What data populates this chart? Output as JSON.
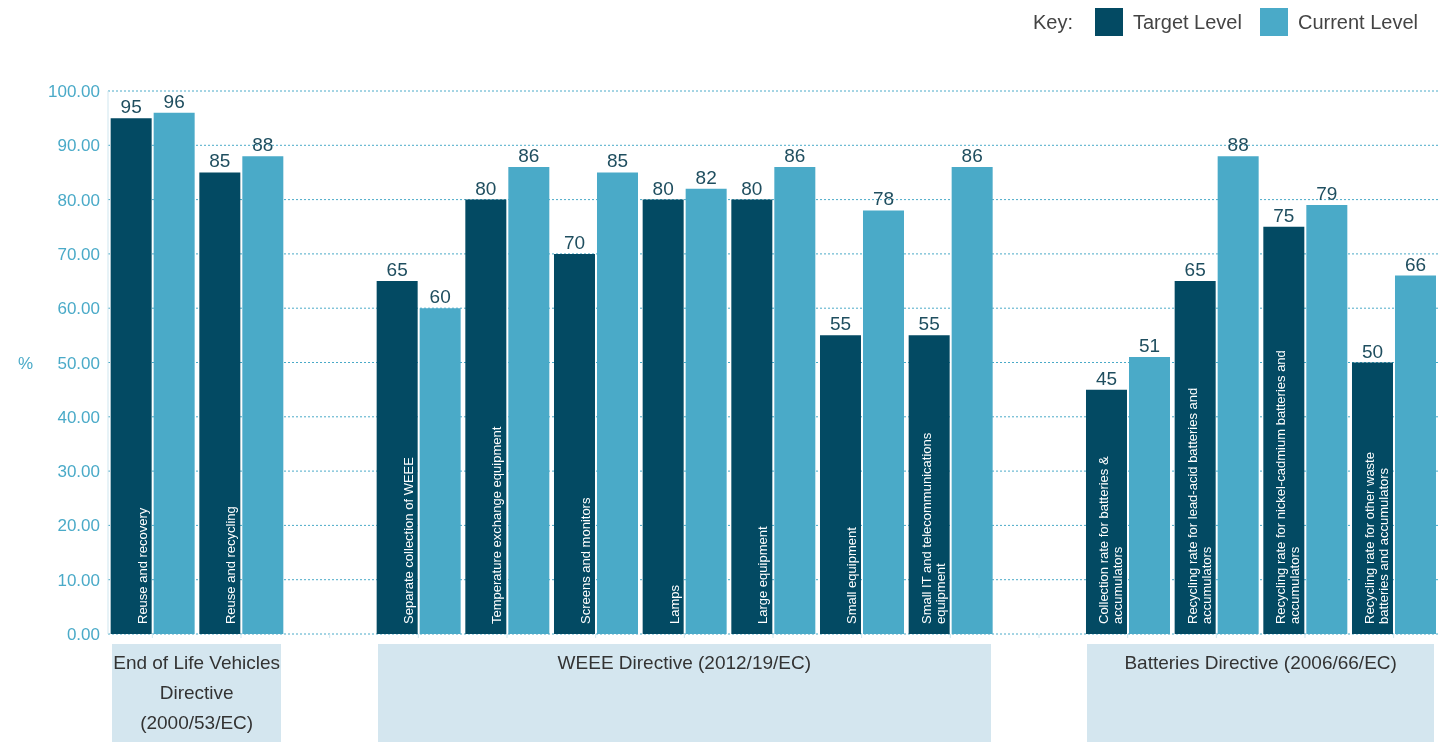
{
  "chart_data": {
    "type": "bar",
    "ylabel": "%",
    "legend_title": "Key:",
    "legend": "top right",
    "grid": "y",
    "data_labels": true,
    "categories": [
      "Reuse and recovery",
      "Reuse and recycling",
      null,
      "Separate collection of WEEE",
      "Temperature exchange equipment",
      "Screens and monitors",
      "Lamps",
      "Large equipment",
      "Small equipment",
      "Small IT and telecommunications equipment",
      null,
      "Collection rate for batteries & accumulators",
      "Recycling rate for lead-acid batteries and accumulators",
      "Recycling rate for nickel-cadmium batteries and accumulators",
      "Recycling rate for other waste batteries and accumulators"
    ],
    "series": [
      {
        "name": "Target Level",
        "color": "#034a63",
        "values": [
          95,
          85,
          null,
          65,
          80,
          70,
          80,
          80,
          55,
          55,
          null,
          45,
          65,
          75,
          50
        ]
      },
      {
        "name": "Current Level",
        "color": "#4aaac8",
        "values": [
          96,
          88,
          null,
          60,
          86,
          85,
          82,
          86,
          78,
          86,
          null,
          51,
          88,
          79,
          66
        ]
      }
    ],
    "annotations": [
      "End of Life Vehicles Directive (2000/53/EC)",
      "WEEE Directive (2012/19/EC)",
      "Batteries Directive (2006/66/EC)"
    ],
    "ylim": [
      0,
      100
    ],
    "yticks": [
      {
        "value": 0,
        "label": "0.00"
      },
      {
        "value": 10,
        "label": "10.00"
      },
      {
        "value": 20,
        "label": "20.00"
      },
      {
        "value": 30,
        "label": "30.00"
      },
      {
        "value": 40,
        "label": "40.00"
      },
      {
        "value": 50,
        "label": "50.00"
      },
      {
        "value": 60,
        "label": "60.00"
      },
      {
        "value": 70,
        "label": "70.00"
      },
      {
        "value": 80,
        "label": "80.00"
      },
      {
        "value": 90,
        "label": "90.00"
      },
      {
        "value": 100,
        "label": "100.00"
      }
    ]
  }
}
